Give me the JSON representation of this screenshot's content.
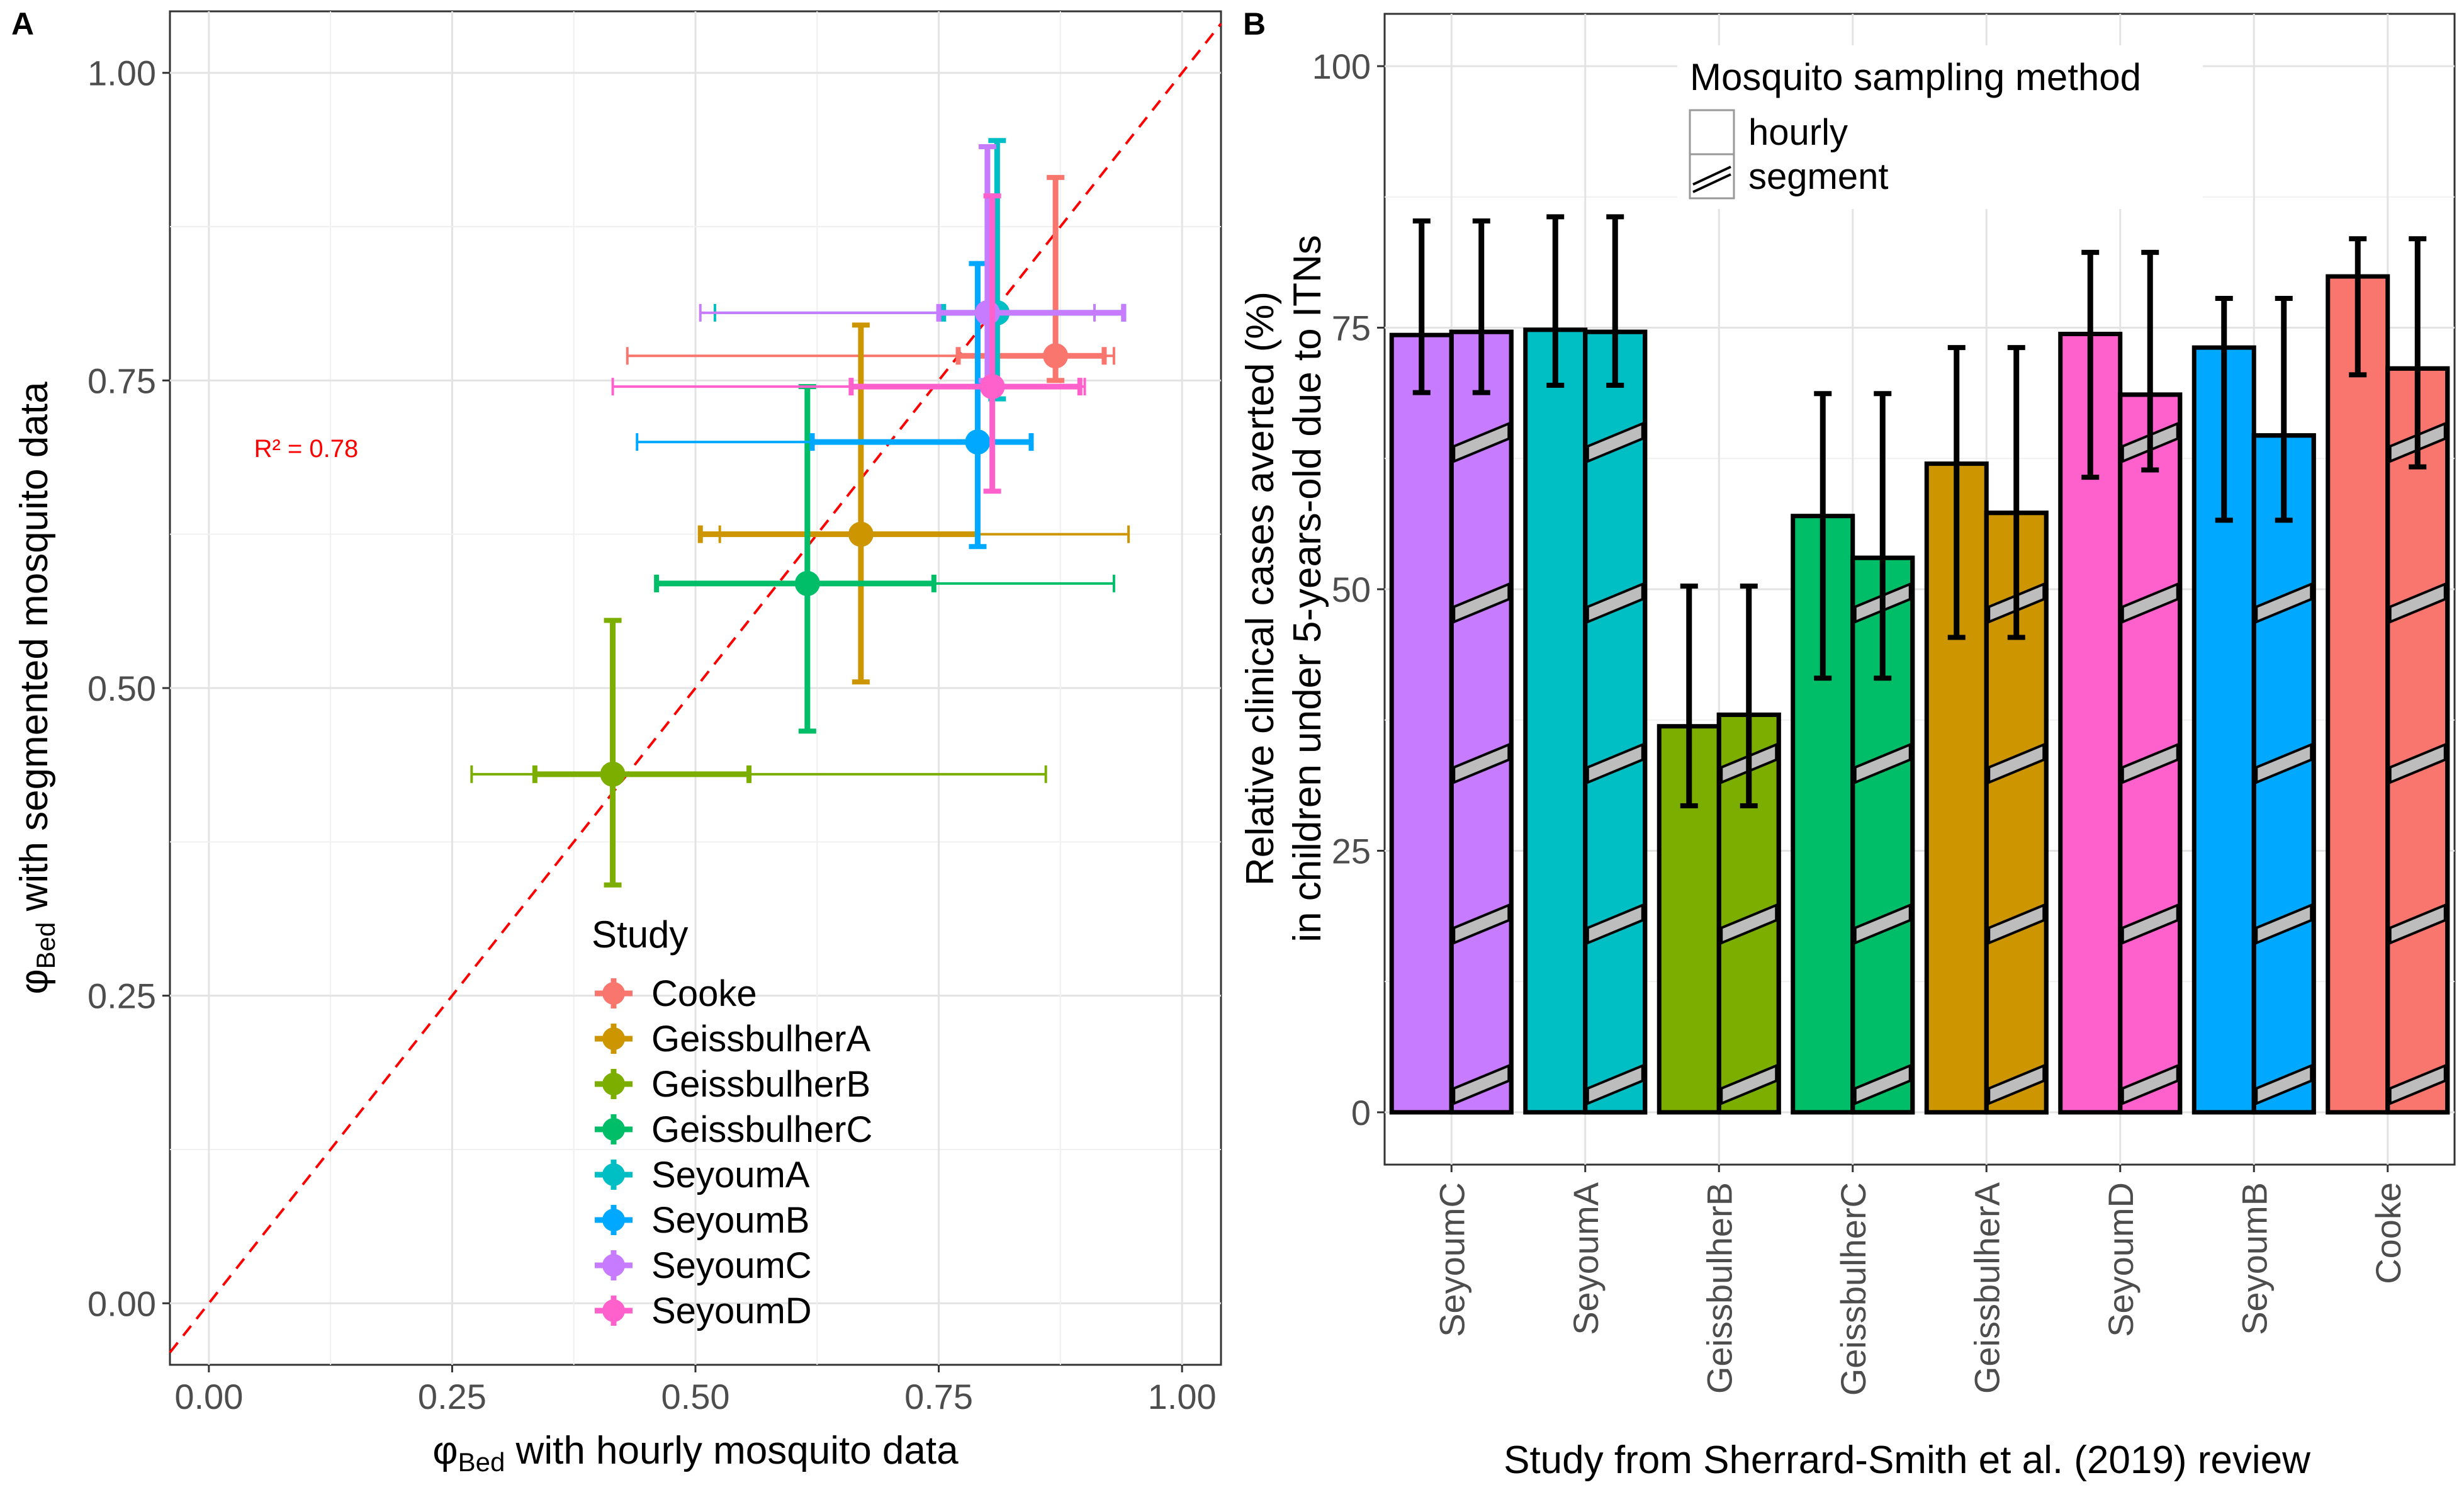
{
  "chart_data": [
    {
      "panel": "A",
      "type": "scatter",
      "xlabel_prefix": "φ",
      "xlabel_sub": "Bed",
      "xlabel_rest": " with hourly mosquito data",
      "ylabel_prefix": "φ",
      "ylabel_sub": "Bed",
      "ylabel_rest": " with segmented mosquito data",
      "xlim": [
        -0.04,
        1.04
      ],
      "ylim": [
        -0.05,
        1.05
      ],
      "ticks": [
        "0.00",
        "0.25",
        "0.50",
        "0.75",
        "1.00"
      ],
      "tick_values": [
        0,
        0.25,
        0.5,
        0.75,
        1.0
      ],
      "grid": true,
      "r2_label": "R² = 0.78",
      "r2_pos": [
        0.1,
        0.695
      ],
      "identity_line": true,
      "legend_title": "Study",
      "legend_position": "bottom-center",
      "points": [
        {
          "name": "Cooke",
          "color": "#F8766D",
          "x": 0.87,
          "y": 0.77,
          "x_inner": [
            0.77,
            0.92
          ],
          "x_outer": [
            0.43,
            0.93
          ],
          "y_inner": [
            0.75,
            0.915
          ],
          "y_outer": [
            0.75,
            0.915
          ]
        },
        {
          "name": "GeissbulherA",
          "color": "#CD9600",
          "x": 0.67,
          "y": 0.625,
          "x_inner": [
            0.505,
            0.79
          ],
          "x_outer": [
            0.525,
            0.945
          ],
          "y_inner": [
            0.505,
            0.795
          ],
          "y_outer": [
            0.505,
            0.795
          ]
        },
        {
          "name": "GeissbulherB",
          "color": "#7CAE00",
          "x": 0.415,
          "y": 0.43,
          "x_inner": [
            0.335,
            0.555
          ],
          "x_outer": [
            0.27,
            0.86
          ],
          "y_inner": [
            0.34,
            0.555
          ],
          "y_outer": [
            0.34,
            0.555
          ]
        },
        {
          "name": "GeissbulherC",
          "color": "#00BE67",
          "x": 0.615,
          "y": 0.585,
          "x_inner": [
            0.46,
            0.745
          ],
          "x_outer": [
            0.46,
            0.93
          ],
          "y_inner": [
            0.465,
            0.745
          ],
          "y_outer": [
            0.465,
            0.745
          ]
        },
        {
          "name": "SeyoumA",
          "color": "#00BFC4",
          "x": 0.81,
          "y": 0.805,
          "x_inner": [
            0.755,
            0.94
          ],
          "x_outer": [
            0.52,
            0.94
          ],
          "y_inner": [
            0.735,
            0.945
          ],
          "y_outer": [
            0.735,
            0.945
          ]
        },
        {
          "name": "SeyoumB",
          "color": "#00A9FF",
          "x": 0.79,
          "y": 0.7,
          "x_inner": [
            0.62,
            0.845
          ],
          "x_outer": [
            0.44,
            0.845
          ],
          "y_inner": [
            0.615,
            0.845
          ],
          "y_outer": [
            0.615,
            0.845
          ]
        },
        {
          "name": "SeyoumC",
          "color": "#C77CFF",
          "x": 0.8,
          "y": 0.805,
          "x_inner": [
            0.75,
            0.94
          ],
          "x_outer": [
            0.505,
            0.91
          ],
          "y_inner": [
            0.75,
            0.94
          ],
          "y_outer": [
            0.75,
            0.94
          ]
        },
        {
          "name": "SeyoumD",
          "color": "#FF61CC",
          "x": 0.805,
          "y": 0.745,
          "x_inner": [
            0.66,
            0.895
          ],
          "x_outer": [
            0.415,
            0.9
          ],
          "y_inner": [
            0.66,
            0.9
          ],
          "y_outer": [
            0.66,
            0.9
          ]
        }
      ]
    },
    {
      "panel": "B",
      "type": "bar",
      "xlabel": "Study from Sherrard-Smith et al. (2019) review",
      "ylabel_line1": "Relative clinical cases averted (%)",
      "ylabel_line2": "in children under 5-years-old due to ITNs",
      "ylim": [
        -5,
        105
      ],
      "ticks": [
        "0",
        "25",
        "50",
        "75",
        "100"
      ],
      "tick_values": [
        0,
        25,
        50,
        75,
        100
      ],
      "grid": true,
      "legend_title": "Mosquito sampling method",
      "legend_position": "top-center",
      "legend_items": [
        "hourly",
        "segment"
      ],
      "categories": [
        "SeyoumC",
        "SeyoumA",
        "GeissbulherB",
        "GeissbulherC",
        "GeissbulherA",
        "SeyoumD",
        "SeyoumB",
        "Cooke"
      ],
      "colors": [
        "#C77CFF",
        "#00BFC4",
        "#7CAE00",
        "#00BE67",
        "#CD9600",
        "#FF61CC",
        "#00A9FF",
        "#F8766D"
      ],
      "series": [
        {
          "name": "hourly",
          "values": [
            74.3,
            74.8,
            36.9,
            57.0,
            62.0,
            74.4,
            73.1,
            79.9
          ],
          "lower": [
            68.8,
            69.5,
            29.3,
            41.5,
            45.4,
            60.7,
            56.6,
            70.5
          ],
          "upper": [
            85.2,
            85.6,
            50.3,
            68.7,
            73.1,
            82.2,
            77.8,
            83.5
          ]
        },
        {
          "name": "segment",
          "values": [
            74.6,
            74.6,
            38.0,
            53.0,
            57.3,
            68.6,
            64.7,
            71.1
          ],
          "lower": [
            68.8,
            69.5,
            29.3,
            41.5,
            45.4,
            61.4,
            56.6,
            61.7
          ],
          "upper": [
            85.2,
            85.6,
            50.3,
            68.7,
            73.1,
            82.2,
            77.8,
            83.5
          ]
        }
      ]
    }
  ]
}
